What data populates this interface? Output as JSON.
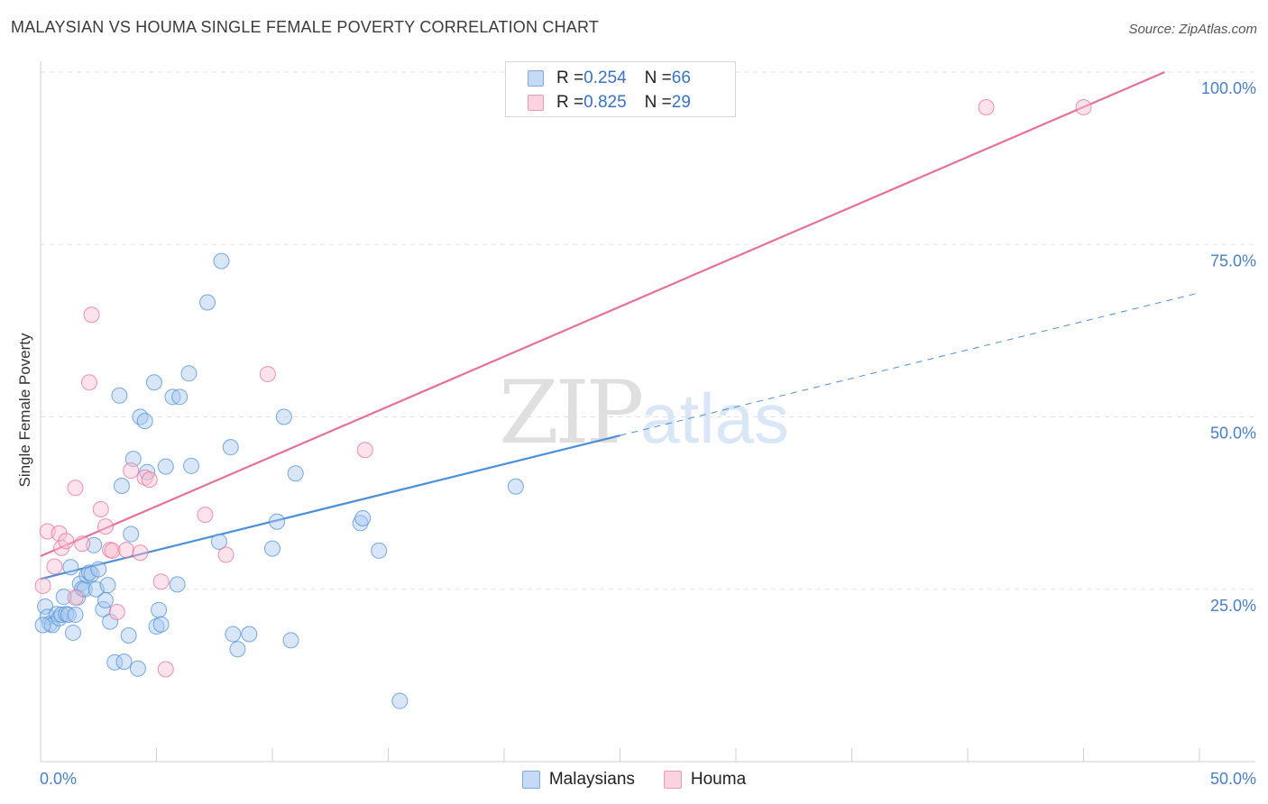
{
  "title": "MALAYSIAN VS HOUMA SINGLE FEMALE POVERTY CORRELATION CHART",
  "source": "Source: ZipAtlas.com",
  "watermark": {
    "part1": "ZIP",
    "part2": "atlas"
  },
  "legend": {
    "rows": [
      {
        "r_label": "R = ",
        "r_value": "0.254",
        "n_label": "N = ",
        "n_value": "66",
        "color": "#a8c8f0"
      },
      {
        "r_label": "R = ",
        "r_value": "0.825",
        "n_label": "N = ",
        "n_value": "29",
        "color": "#f8bfd0"
      }
    ]
  },
  "bottom_legend": {
    "items": [
      {
        "label": "Malaysians"
      },
      {
        "label": "Houma"
      }
    ]
  },
  "chart_data": {
    "type": "scatter",
    "title": "MALAYSIAN VS HOUMA SINGLE FEMALE POVERTY CORRELATION CHART",
    "xlabel": "",
    "ylabel": "Single Female Poverty",
    "xlim": [
      0,
      50
    ],
    "ylim": [
      0,
      100
    ],
    "x_tick_labels": [
      "0.0%",
      "50.0%"
    ],
    "y_ticks": [
      25,
      50,
      75,
      100
    ],
    "y_tick_labels": [
      "25.0%",
      "50.0%",
      "75.0%",
      "100.0%"
    ],
    "grid": true,
    "legend_position": "top-center",
    "series": [
      {
        "name": "Malaysians",
        "color": "#4d8fd8",
        "fill": "#a8c8f0",
        "R": 0.254,
        "N": 66,
        "trend": {
          "x0": 0,
          "y0": 26.5,
          "x1": 25,
          "y1": 47.3,
          "dash_to_x": 50,
          "dash_to_y": 68
        },
        "points": [
          [
            0.2,
            22.5
          ],
          [
            0.3,
            21
          ],
          [
            0.4,
            20
          ],
          [
            0.5,
            19.8
          ],
          [
            0.7,
            21.4
          ],
          [
            0.8,
            20.8
          ],
          [
            0.9,
            21.3
          ],
          [
            1.0,
            23.9
          ],
          [
            1.1,
            21.4
          ],
          [
            1.2,
            21.3
          ],
          [
            1.3,
            28.2
          ],
          [
            1.4,
            18.7
          ],
          [
            1.5,
            21.3
          ],
          [
            1.6,
            23.8
          ],
          [
            1.7,
            25.8
          ],
          [
            1.8,
            25.1
          ],
          [
            1.9,
            25.0
          ],
          [
            2.0,
            27.0
          ],
          [
            2.1,
            27.4
          ],
          [
            2.2,
            27.2
          ],
          [
            2.3,
            31.4
          ],
          [
            2.4,
            25.0
          ],
          [
            2.5,
            27.9
          ],
          [
            2.7,
            22.1
          ],
          [
            2.8,
            23.4
          ],
          [
            2.9,
            25.6
          ],
          [
            3.0,
            20.3
          ],
          [
            3.2,
            14.4
          ],
          [
            3.4,
            53.1
          ],
          [
            3.5,
            40.0
          ],
          [
            3.6,
            14.5
          ],
          [
            3.8,
            18.3
          ],
          [
            3.9,
            33.0
          ],
          [
            4.0,
            43.9
          ],
          [
            4.2,
            13.5
          ],
          [
            4.3,
            50.0
          ],
          [
            4.5,
            49.4
          ],
          [
            4.6,
            42.0
          ],
          [
            4.9,
            55.0
          ],
          [
            5.0,
            19.6
          ],
          [
            5.1,
            22.0
          ],
          [
            5.2,
            19.9
          ],
          [
            5.4,
            42.8
          ],
          [
            5.7,
            52.9
          ],
          [
            5.9,
            25.7
          ],
          [
            6.0,
            52.9
          ],
          [
            6.4,
            56.3
          ],
          [
            6.5,
            42.9
          ],
          [
            7.2,
            66.6
          ],
          [
            7.7,
            31.9
          ],
          [
            7.8,
            72.6
          ],
          [
            8.2,
            45.6
          ],
          [
            8.3,
            18.5
          ],
          [
            8.5,
            16.3
          ],
          [
            9.0,
            18.5
          ],
          [
            10.0,
            30.9
          ],
          [
            10.2,
            34.8
          ],
          [
            10.5,
            50.0
          ],
          [
            10.8,
            17.6
          ],
          [
            11.0,
            41.8
          ],
          [
            13.8,
            34.6
          ],
          [
            13.9,
            35.3
          ],
          [
            14.6,
            30.6
          ],
          [
            15.5,
            8.8
          ],
          [
            20.5,
            39.9
          ],
          [
            0.1,
            19.8
          ]
        ]
      },
      {
        "name": "Houma",
        "color": "#e7709a",
        "fill": "#f8bfd0",
        "R": 0.825,
        "N": 29,
        "trend": {
          "x0": 0,
          "y0": 29.8,
          "x1": 48.5,
          "y1": 100
        },
        "points": [
          [
            0.1,
            25.5
          ],
          [
            0.3,
            33.4
          ],
          [
            0.6,
            28.3
          ],
          [
            0.8,
            33.1
          ],
          [
            0.9,
            31.0
          ],
          [
            1.1,
            32.0
          ],
          [
            1.5,
            23.8
          ],
          [
            1.5,
            39.7
          ],
          [
            1.8,
            31.6
          ],
          [
            2.1,
            55.0
          ],
          [
            2.2,
            64.8
          ],
          [
            2.6,
            36.6
          ],
          [
            2.8,
            34.1
          ],
          [
            3.0,
            30.7
          ],
          [
            3.1,
            30.6
          ],
          [
            3.3,
            21.7
          ],
          [
            3.7,
            30.7
          ],
          [
            3.9,
            42.2
          ],
          [
            4.3,
            30.3
          ],
          [
            4.5,
            41.2
          ],
          [
            4.7,
            40.9
          ],
          [
            5.2,
            26.1
          ],
          [
            5.4,
            13.4
          ],
          [
            7.1,
            35.8
          ],
          [
            8.0,
            30.0
          ],
          [
            9.8,
            56.2
          ],
          [
            14.0,
            45.2
          ],
          [
            40.8,
            94.9
          ],
          [
            45.0,
            94.9
          ]
        ]
      }
    ]
  }
}
